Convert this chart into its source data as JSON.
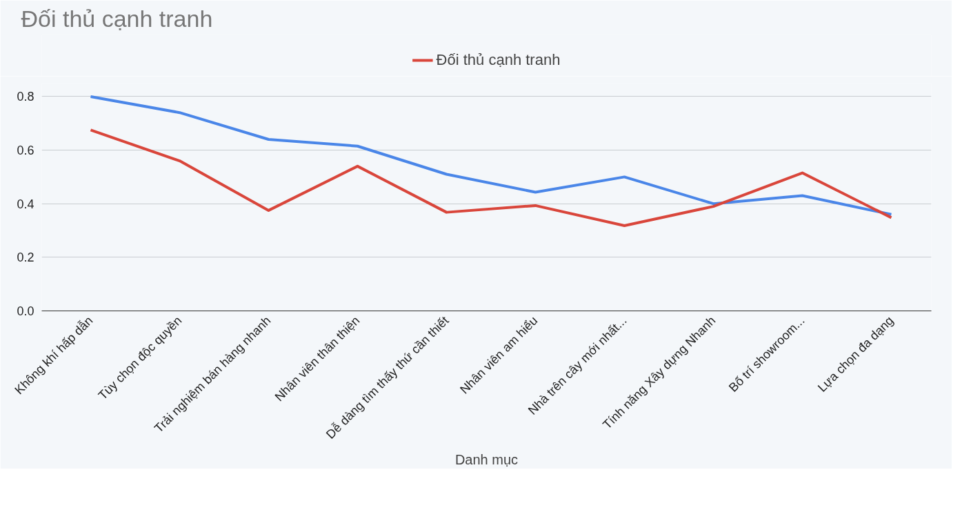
{
  "chart_data": {
    "type": "line",
    "title": "Đối thủ cạnh tranh",
    "xlabel": "Danh mục",
    "categories": [
      "Không khí hấp dẫn",
      "Tùy chọn độc quyền",
      "Trải nghiệm bán hàng nhanh",
      "Nhân viên thân thiện",
      "Dễ dàng tìm thấy thứ cần thiết",
      "Nhân viên am hiểu",
      "Nhà trên cây mới nhất...",
      "Tính năng Xây dựng Nhanh",
      "Bố trí showroom...",
      "Lựa chọn đa dạng"
    ],
    "series": [
      {
        "color": "#4a86e8",
        "values": [
          0.8,
          0.74,
          0.64,
          0.615,
          0.51,
          0.443,
          0.5,
          0.4,
          0.43,
          0.36
        ]
      },
      {
        "name": "Đối thủ cạnh tranh",
        "color": "#d9463b",
        "values": [
          0.675,
          0.56,
          0.375,
          0.54,
          0.368,
          0.393,
          0.318,
          0.39,
          0.515,
          0.348
        ]
      }
    ],
    "ylim": [
      0,
      0.85
    ],
    "yticks": [
      {
        "value": 0,
        "label": "0.0"
      },
      {
        "value": 0.2,
        "label": "0.2"
      },
      {
        "value": 0.4,
        "label": "0.4"
      },
      {
        "value": 0.6,
        "label": "0.6"
      },
      {
        "value": 0.8,
        "label": "0.8"
      }
    ],
    "grid": "y",
    "legend": "top",
    "marker": "none",
    "line_style": "solid"
  }
}
